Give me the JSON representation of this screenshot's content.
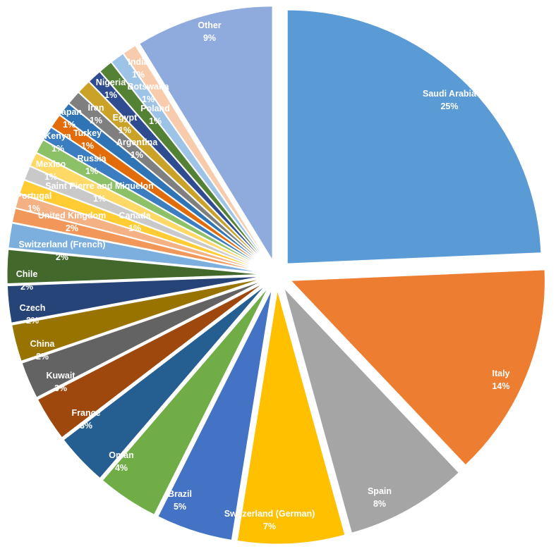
{
  "chart_data": {
    "type": "pie",
    "exploded": true,
    "start": "top",
    "direction": "clockwise",
    "slices": [
      {
        "label": "Saudi Arabia",
        "percent_label": "25%",
        "value": 25.0,
        "color": "#5B9BD5"
      },
      {
        "label": "Italy",
        "percent_label": "14%",
        "value": 14.0,
        "color": "#ED7D31"
      },
      {
        "label": "Spain",
        "percent_label": "8%",
        "value": 8.0,
        "color": "#A5A5A5"
      },
      {
        "label": "Switzerland (German)",
        "percent_label": "7%",
        "value": 7.0,
        "color": "#FFC000"
      },
      {
        "label": "Brazil",
        "percent_label": "5%",
        "value": 5.0,
        "color": "#4472C4"
      },
      {
        "label": "Oman",
        "percent_label": "4%",
        "value": 4.0,
        "color": "#70AD47"
      },
      {
        "label": "France",
        "percent_label": "3%",
        "value": 3.4,
        "color": "#255E91"
      },
      {
        "label": "Kuwait",
        "percent_label": "3%",
        "value": 2.9,
        "color": "#9E480E"
      },
      {
        "label": "China",
        "percent_label": "2%",
        "value": 2.4,
        "color": "#636363"
      },
      {
        "label": "Czech",
        "percent_label": "2%",
        "value": 2.4,
        "color": "#997300"
      },
      {
        "label": "Chile",
        "percent_label": "2%",
        "value": 2.4,
        "color": "#264478"
      },
      {
        "label": "Switzerland (French)",
        "percent_label": "2%",
        "value": 2.2,
        "color": "#43682B"
      },
      {
        "label": "United Kingdom",
        "percent_label": "2%",
        "value": 1.6,
        "color": "#7CAFDD"
      },
      {
        "label": "Canada",
        "percent_label": "1%",
        "value": 0.9,
        "color": "#F1975A"
      },
      {
        "label": "Portugal",
        "percent_label": "1%",
        "value": 0.9,
        "color": "#F4B183"
      },
      {
        "label": "Saint Pierre and Miquelon",
        "percent_label": "1%",
        "value": 0.9,
        "color": "#FFCD33"
      },
      {
        "label": "Mexico",
        "percent_label": "1%",
        "value": 0.9,
        "color": "#C9C9C9"
      },
      {
        "label": "Russia",
        "percent_label": "1%",
        "value": 0.9,
        "color": "#FFD966"
      },
      {
        "label": "Kenya",
        "percent_label": "1%",
        "value": 0.9,
        "color": "#8CC168"
      },
      {
        "label": "Turkey",
        "percent_label": "1%",
        "value": 0.9,
        "color": "#3C7DC1"
      },
      {
        "label": "Argentina",
        "percent_label": "1%",
        "value": 0.9,
        "color": "#E36C0A"
      },
      {
        "label": "Japan",
        "percent_label": "1%",
        "value": 0.9,
        "color": "#2F75B5"
      },
      {
        "label": "Iran",
        "percent_label": "1%",
        "value": 0.9,
        "color": "#7F7F7F"
      },
      {
        "label": "Egypt",
        "percent_label": "1%",
        "value": 0.9,
        "color": "#C9A227"
      },
      {
        "label": "Nigeria",
        "percent_label": "1%",
        "value": 0.9,
        "color": "#2E4C8F"
      },
      {
        "label": "Poland",
        "percent_label": "1%",
        "value": 0.9,
        "color": "#548235"
      },
      {
        "label": "Botswana",
        "percent_label": "1%",
        "value": 0.9,
        "color": "#9DC3E6"
      },
      {
        "label": "India",
        "percent_label": "1%",
        "value": 0.9,
        "color": "#F8CBAD"
      },
      {
        "label": "Other",
        "percent_label": "9%",
        "value": 9.0,
        "color": "#8FAADC"
      }
    ]
  }
}
